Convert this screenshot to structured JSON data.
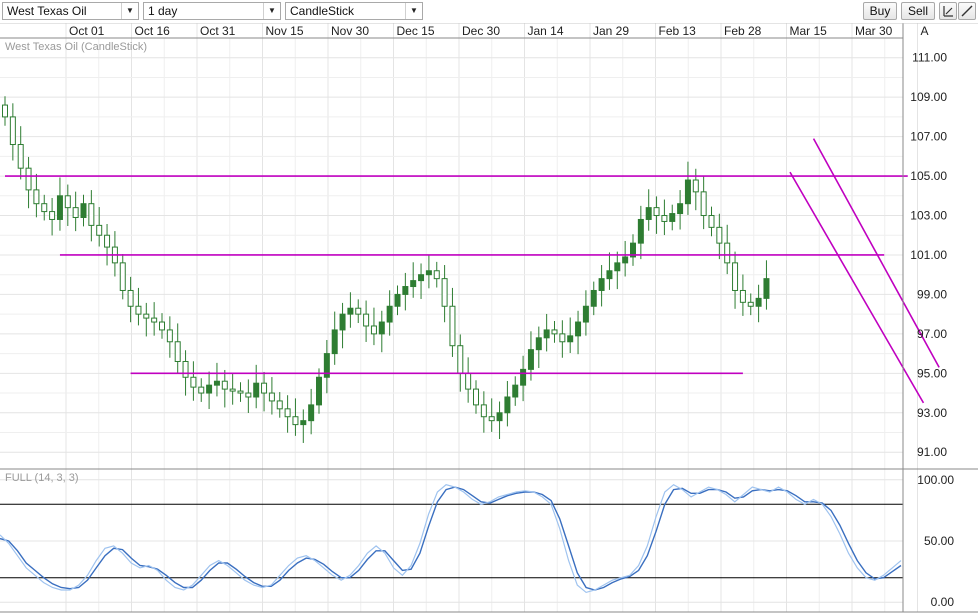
{
  "toolbar": {
    "instrument": "West Texas Oil",
    "timeframe": "1 day",
    "chart_type": "CandleStick",
    "buy_label": "Buy",
    "sell_label": "Sell",
    "tool_icons": [
      "crosshair-icon",
      "draw-line-icon"
    ]
  },
  "colors": {
    "grid": "#e4e4e4",
    "candle": "#2e7d32",
    "trendline": "#c000c0",
    "oscillator_k": "#3a6fc0",
    "oscillator_d": "#9fc3ef",
    "level_line": "#000000"
  },
  "chart_data": [
    {
      "type": "candlestick",
      "title": "West Texas Oil (CandleStick)",
      "x_tick_labels": [
        "Oct 01",
        "Oct 16",
        "Oct 31",
        "Nov 15",
        "Nov 30",
        "Dec 15",
        "Dec 30",
        "Jan 14",
        "Jan 29",
        "Feb 13",
        "Feb 28",
        "Mar 15",
        "Mar 30",
        "A"
      ],
      "y_tick_labels": [
        "111.00",
        "109.00",
        "107.00",
        "105.00",
        "103.00",
        "101.00",
        "99.00",
        "97.00",
        "95.00",
        "93.00",
        "91.00"
      ],
      "ylim": [
        90.2,
        112.0
      ],
      "grid": true,
      "close_series": [
        108.0,
        106.6,
        105.4,
        104.3,
        103.6,
        103.2,
        102.8,
        104.0,
        103.4,
        102.9,
        103.6,
        102.5,
        102.0,
        101.4,
        100.6,
        99.2,
        98.4,
        98.0,
        97.8,
        97.6,
        97.2,
        96.6,
        95.6,
        94.8,
        94.3,
        94.0,
        94.4,
        94.6,
        94.2,
        94.1,
        94.0,
        93.8,
        94.5,
        94.0,
        93.6,
        93.2,
        92.8,
        92.4,
        92.6,
        93.4,
        94.8,
        96.0,
        97.2,
        98.0,
        98.3,
        98.0,
        97.4,
        97.0,
        97.6,
        98.4,
        99.0,
        99.4,
        99.7,
        100.0,
        100.2,
        99.8,
        98.4,
        96.4,
        95.0,
        94.2,
        93.4,
        92.8,
        92.6,
        93.0,
        93.8,
        94.4,
        95.2,
        96.2,
        96.8,
        97.2,
        97.0,
        96.6,
        96.9,
        97.6,
        98.4,
        99.2,
        99.8,
        100.2,
        100.6,
        100.9,
        101.6,
        102.8,
        103.4,
        103.0,
        102.7,
        103.1,
        103.6,
        104.8,
        104.2,
        103.0,
        102.4,
        101.6,
        100.6,
        99.2,
        98.6,
        98.4,
        98.8,
        99.8
      ],
      "candle_spacing_days": 1,
      "lines": [
        {
          "from": [
            0,
            105.0
          ],
          "to": [
            115,
            105.0
          ]
        },
        {
          "from": [
            7,
            101.0
          ],
          "to": [
            112,
            101.0
          ]
        },
        {
          "from": [
            16,
            95.0
          ],
          "to": [
            94,
            95.0
          ]
        },
        {
          "from": [
            103,
            106.9
          ],
          "to": [
            119,
            95.3
          ]
        },
        {
          "from": [
            100,
            105.2
          ],
          "to": [
            117,
            93.5
          ]
        }
      ]
    },
    {
      "type": "line",
      "title": "FULL (14, 3, 3)",
      "y_tick_labels": [
        "100.00",
        "50.00",
        "0.00"
      ],
      "ylim": [
        -8,
        108
      ],
      "levels": [
        80,
        20
      ],
      "series": [
        {
          "values": [
            55,
            48,
            38,
            28,
            22,
            16,
            12,
            10,
            10,
            14,
            22,
            34,
            44,
            46,
            40,
            32,
            28,
            30,
            26,
            18,
            12,
            10,
            14,
            22,
            30,
            34,
            30,
            24,
            18,
            14,
            12,
            14,
            22,
            30,
            36,
            38,
            34,
            28,
            22,
            18,
            22,
            30,
            40,
            46,
            40,
            28,
            22,
            30,
            48,
            72,
            90,
            96,
            94,
            90,
            84,
            80,
            82,
            86,
            88,
            90,
            91,
            90,
            86,
            80,
            60,
            34,
            14,
            8,
            10,
            14,
            18,
            20,
            22,
            30,
            46,
            70,
            90,
            96,
            92,
            86,
            90,
            94,
            92,
            88,
            82,
            88,
            94,
            92,
            90,
            94,
            90,
            84,
            80,
            84,
            80,
            70,
            56,
            40,
            28,
            20,
            18,
            22,
            28,
            34
          ]
        },
        {
          "values": [
            52,
            50,
            42,
            32,
            26,
            20,
            15,
            12,
            11,
            12,
            18,
            28,
            38,
            44,
            43,
            36,
            30,
            29,
            27,
            22,
            16,
            12,
            12,
            18,
            26,
            32,
            32,
            27,
            21,
            16,
            13,
            13,
            18,
            26,
            32,
            36,
            35,
            31,
            25,
            20,
            20,
            26,
            35,
            42,
            42,
            34,
            26,
            27,
            40,
            62,
            82,
            92,
            94,
            92,
            87,
            82,
            81,
            84,
            87,
            89,
            90,
            90,
            88,
            83,
            68,
            46,
            24,
            12,
            10,
            12,
            16,
            19,
            21,
            26,
            38,
            58,
            80,
            92,
            93,
            89,
            89,
            92,
            92,
            90,
            85,
            86,
            91,
            92,
            91,
            92,
            91,
            87,
            82,
            82,
            81,
            75,
            63,
            48,
            34,
            24,
            19,
            20,
            25,
            30
          ]
        }
      ]
    }
  ]
}
